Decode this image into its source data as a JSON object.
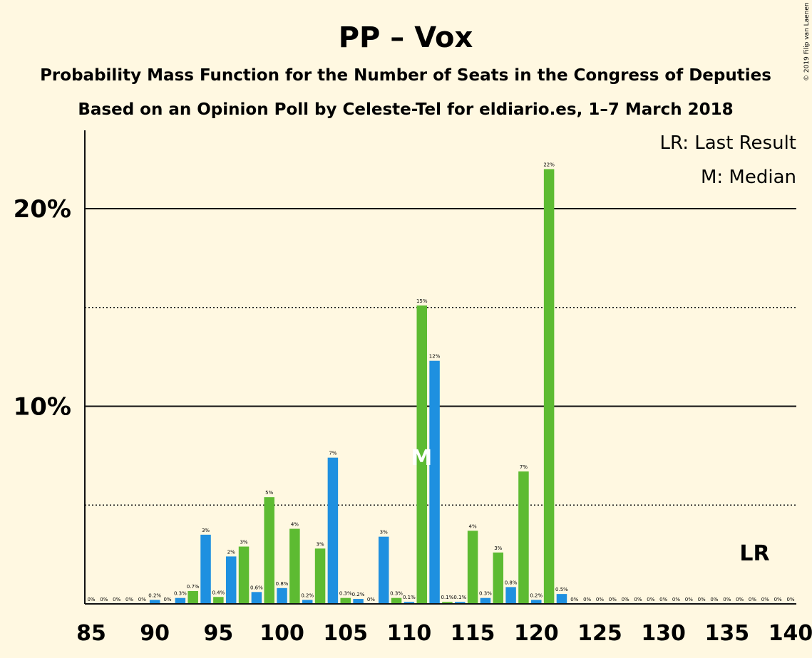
{
  "chart_data": {
    "type": "bar",
    "title": "PP – Vox",
    "subtitle": "Probability Mass Function for the Number of Seats in the Congress of Deputies",
    "subtitle2": "Based on an Opinion Poll by Celeste-Tel for eldiario.es, 1–7 March 2018",
    "copyright": "© 2019 Filip van Laenen",
    "legend": {
      "last_result": "LR: Last Result",
      "median": "M: Median"
    },
    "x_tick_labels": [
      "85",
      "90",
      "95",
      "100",
      "105",
      "110",
      "115",
      "120",
      "125",
      "130",
      "135",
      "140"
    ],
    "x_ticks": [
      85,
      90,
      95,
      100,
      105,
      110,
      115,
      120,
      125,
      130,
      135,
      140
    ],
    "y_tick_labels": [
      "10%",
      "20%"
    ],
    "y_ticks": [
      10,
      20
    ],
    "y_dotted": [
      5,
      15
    ],
    "xlim": [
      85,
      140
    ],
    "ylim": [
      0,
      24
    ],
    "median_seat": 111,
    "median_marker": "M",
    "last_result_seat": 137,
    "last_result_marker": "LR",
    "colors": {
      "blue": "#1e90e0",
      "green": "#5dbb32",
      "background": "#fff8e1",
      "text": "#111111"
    },
    "series": [
      {
        "color": "blue",
        "x": [
          86,
          88,
          90,
          92,
          94,
          96,
          98,
          100,
          102,
          104,
          106,
          108,
          110,
          112,
          114,
          116,
          118,
          120,
          122,
          124,
          126,
          128,
          130,
          132,
          134,
          136,
          138,
          140
        ],
        "values": [
          0,
          0,
          0.2,
          0.3,
          3.5,
          2.4,
          0.6,
          0.8,
          0.2,
          7.4,
          0.25,
          3.4,
          0.1,
          12.3,
          0.1,
          0.3,
          0.85,
          0.2,
          0.5,
          0,
          0,
          0,
          0,
          0,
          0,
          0,
          0,
          0
        ],
        "labels": [
          "0%",
          "0%",
          "0.2%",
          "0.3%",
          "3%",
          "2%",
          "0.6%",
          "0.8%",
          "0.2%",
          "7%",
          "0.2%",
          "3%",
          "0.1%",
          "12%",
          "0.1%",
          "0.3%",
          "0.8%",
          "0.2%",
          "0.5%",
          "0%",
          "0%",
          "0%",
          "0%",
          "0%",
          "0%",
          "0%",
          "0%",
          "0%"
        ]
      },
      {
        "color": "green",
        "x": [
          85,
          87,
          89,
          91,
          93,
          95,
          97,
          99,
          101,
          103,
          105,
          107,
          109,
          111,
          113,
          115,
          117,
          119,
          121,
          123,
          125,
          127,
          129,
          131,
          133,
          135,
          137,
          139
        ],
        "values": [
          0,
          0,
          0,
          0,
          0.65,
          0.35,
          2.9,
          5.4,
          3.8,
          2.8,
          0.3,
          0,
          0.3,
          15.1,
          0.1,
          3.7,
          2.6,
          6.7,
          22.0,
          0,
          0,
          0,
          0,
          0,
          0,
          0,
          0,
          0
        ],
        "labels": [
          "0%",
          "0%",
          "0%",
          "0%",
          "0.7%",
          "0.4%",
          "3%",
          "5%",
          "4%",
          "3%",
          "0.3%",
          "0%",
          "0.3%",
          "15%",
          "0.1%",
          "4%",
          "3%",
          "7%",
          "22%",
          "0%",
          "0%",
          "0%",
          "0%",
          "0%",
          "0%",
          "0%",
          "0%",
          "0%"
        ]
      }
    ]
  }
}
